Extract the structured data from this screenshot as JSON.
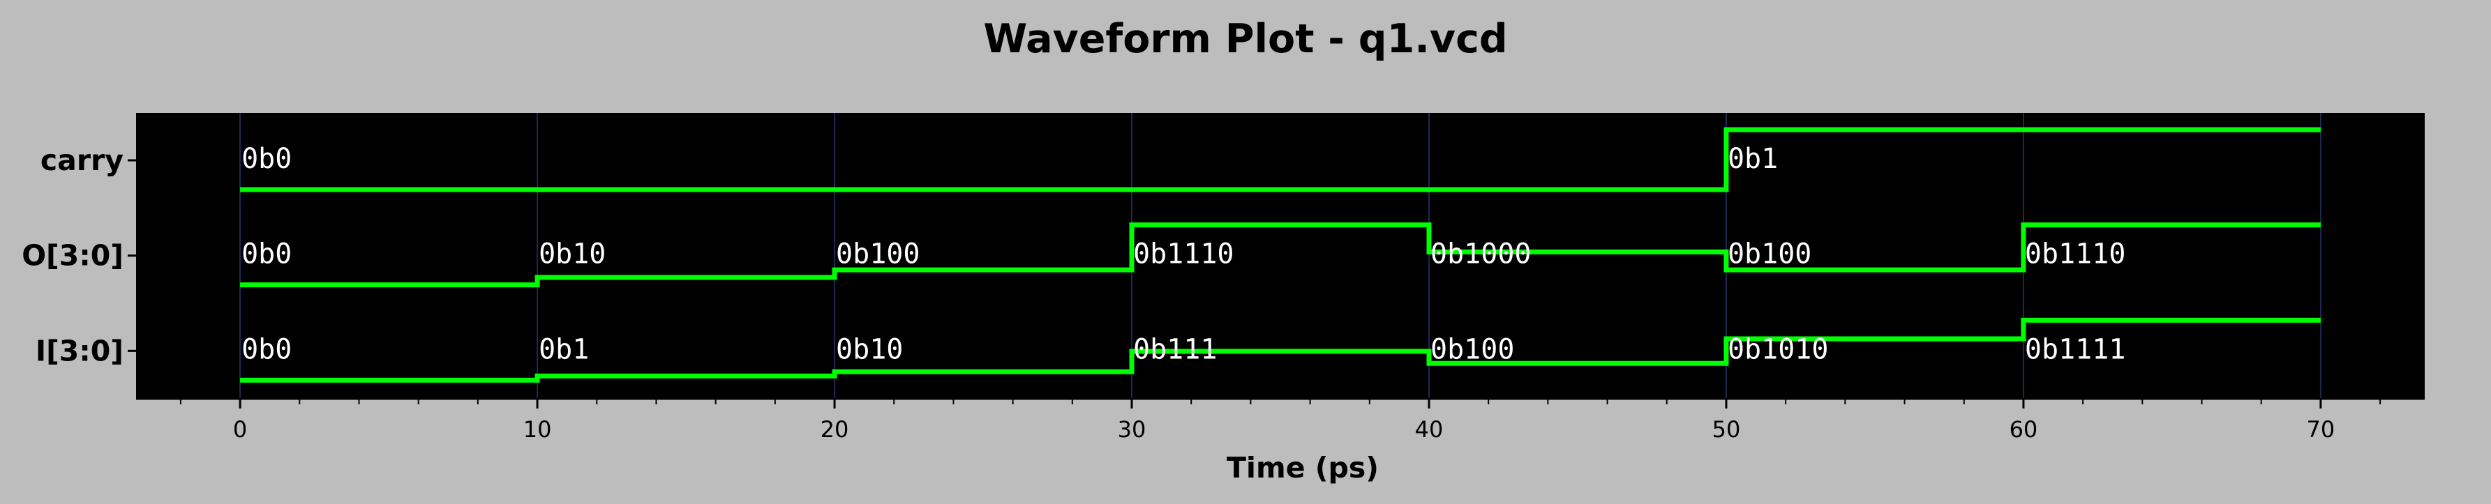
{
  "chart_data": {
    "type": "line",
    "title": "Waveform Plot - q1.vcd",
    "xlabel": "Time (ps)",
    "ylabel": "",
    "xlim": [
      -3.5,
      73.5
    ],
    "x_ticks": [
      0,
      10,
      20,
      30,
      40,
      50,
      60,
      70
    ],
    "grid": "vertical",
    "colors": {
      "background": "#bdbdbd",
      "plot_background": "#000000",
      "trace": "#00ff00",
      "grid": "#1c2a55",
      "value_text": "#ffffff"
    },
    "signals": [
      {
        "name": "carry",
        "end_time": 70,
        "segments": [
          {
            "t": 0,
            "label": "0b0",
            "level": 0.0
          },
          {
            "t": 50,
            "label": "0b1",
            "level": 1.0
          }
        ]
      },
      {
        "name": "O[3:0]",
        "end_time": 70,
        "segments": [
          {
            "t": 0,
            "label": "0b0",
            "level": 0.0
          },
          {
            "t": 10,
            "label": "0b10",
            "level": 0.125
          },
          {
            "t": 20,
            "label": "0b100",
            "level": 0.25
          },
          {
            "t": 30,
            "label": "0b1110",
            "level": 1.0
          },
          {
            "t": 40,
            "label": "0b1000",
            "level": 0.55
          },
          {
            "t": 50,
            "label": "0b100",
            "level": 0.25
          },
          {
            "t": 60,
            "label": "0b1110",
            "level": 1.0
          }
        ]
      },
      {
        "name": "I[3:0]",
        "end_time": 70,
        "segments": [
          {
            "t": 0,
            "label": "0b0",
            "level": 0.0
          },
          {
            "t": 10,
            "label": "0b1",
            "level": 0.07
          },
          {
            "t": 20,
            "label": "0b10",
            "level": 0.14
          },
          {
            "t": 30,
            "label": "0b111",
            "level": 0.48
          },
          {
            "t": 40,
            "label": "0b100",
            "level": 0.28
          },
          {
            "t": 50,
            "label": "0b1010",
            "level": 0.69
          },
          {
            "t": 60,
            "label": "0b1111",
            "level": 1.0
          }
        ]
      }
    ]
  }
}
